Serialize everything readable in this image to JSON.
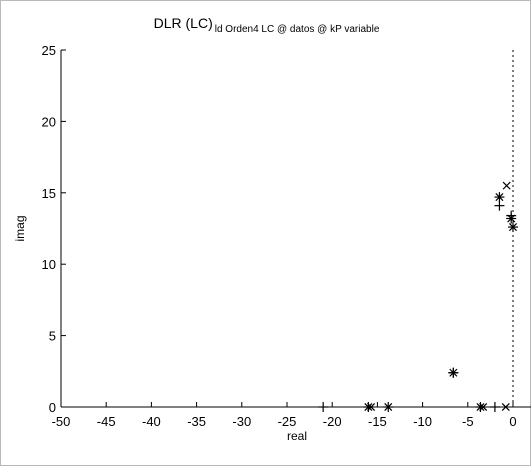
{
  "chart_data": {
    "type": "scatter",
    "title": "DLR (LC)",
    "subtitle": "ld Orden4 LC @ datos @ kP variable",
    "xlabel": "real",
    "ylabel": "imag",
    "xlim": [
      -50,
      0
    ],
    "ylim": [
      0,
      25
    ],
    "x_ticks": [
      "-50",
      "-45",
      "-40",
      "-35",
      "-30",
      "-25",
      "-20",
      "-15",
      "-10",
      "-5",
      "0"
    ],
    "y_ticks": [
      "0",
      "5",
      "10",
      "15",
      "20",
      "25"
    ],
    "grid": false,
    "reference_lines": {
      "x": 0,
      "y": 0,
      "style": "dotted"
    },
    "points": [
      {
        "x": -21.0,
        "y": 0.0,
        "marker": "plus"
      },
      {
        "x": -16.0,
        "y": 0.0,
        "marker": "star"
      },
      {
        "x": -15.7,
        "y": 0.0,
        "marker": "x"
      },
      {
        "x": -13.8,
        "y": 0.0,
        "marker": "star"
      },
      {
        "x": -6.6,
        "y": 2.4,
        "marker": "star"
      },
      {
        "x": -6.6,
        "y": 2.4,
        "marker": "plus"
      },
      {
        "x": -3.6,
        "y": 0.0,
        "marker": "star"
      },
      {
        "x": -3.3,
        "y": 0.0,
        "marker": "x"
      },
      {
        "x": -2.0,
        "y": 0.0,
        "marker": "plus"
      },
      {
        "x": -0.8,
        "y": 0.0,
        "marker": "x"
      },
      {
        "x": -1.5,
        "y": 14.1,
        "marker": "plus"
      },
      {
        "x": -1.5,
        "y": 14.7,
        "marker": "star"
      },
      {
        "x": -0.7,
        "y": 15.5,
        "marker": "x"
      },
      {
        "x": -0.2,
        "y": 13.2,
        "marker": "star"
      },
      {
        "x": -0.2,
        "y": 13.4,
        "marker": "plus"
      },
      {
        "x": 0.0,
        "y": 12.6,
        "marker": "star"
      }
    ]
  }
}
